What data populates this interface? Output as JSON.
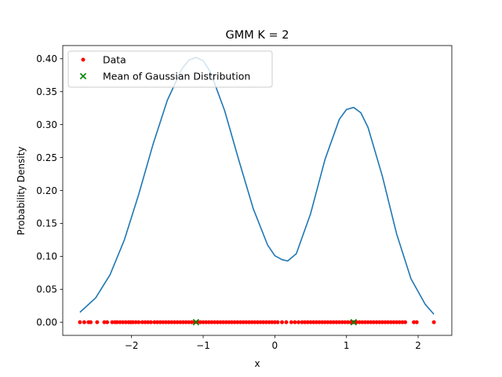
{
  "chart_data": {
    "type": "line",
    "title": "GMM K = 2",
    "xlabel": "x",
    "ylabel": "Probability Density",
    "xlim": [
      -2.96,
      2.47
    ],
    "ylim": [
      -0.02,
      0.42
    ],
    "x_ticks": [
      -2,
      -1,
      0,
      1,
      2
    ],
    "x_tick_labels": [
      "−2",
      "−1",
      "0",
      "1",
      "2"
    ],
    "y_ticks": [
      0.0,
      0.05,
      0.1,
      0.15,
      0.2,
      0.25,
      0.3,
      0.35,
      0.4
    ],
    "y_tick_labels": [
      "0.00",
      "0.05",
      "0.10",
      "0.15",
      "0.20",
      "0.25",
      "0.30",
      "0.35",
      "0.40"
    ],
    "grid": false,
    "legend_position": "upper-left",
    "series": [
      {
        "kind": "line",
        "color": "#1f77b4",
        "x": [
          -2.72,
          -2.5,
          -2.3,
          -2.1,
          -1.9,
          -1.7,
          -1.5,
          -1.3,
          -1.2,
          -1.1,
          -1.0,
          -0.9,
          -0.7,
          -0.5,
          -0.3,
          -0.1,
          0.0,
          0.1,
          0.18,
          0.3,
          0.5,
          0.7,
          0.9,
          1.0,
          1.1,
          1.2,
          1.3,
          1.5,
          1.7,
          1.9,
          2.1,
          2.22
        ],
        "y": [
          0.015,
          0.037,
          0.072,
          0.125,
          0.194,
          0.27,
          0.337,
          0.384,
          0.398,
          0.402,
          0.397,
          0.38,
          0.321,
          0.245,
          0.172,
          0.117,
          0.101,
          0.095,
          0.093,
          0.104,
          0.165,
          0.247,
          0.308,
          0.323,
          0.326,
          0.318,
          0.296,
          0.222,
          0.134,
          0.066,
          0.027,
          0.012
        ]
      },
      {
        "name": "Data",
        "kind": "scatter",
        "color": "#ff0000",
        "x": [
          -2.72,
          -2.66,
          -2.6,
          -2.57,
          -2.48,
          -2.38,
          -2.34,
          -2.27,
          -2.23,
          -2.2,
          -2.16,
          -2.12,
          -2.08,
          -2.04,
          -2.01,
          -1.98,
          -1.94,
          -1.9,
          -1.85,
          -1.81,
          -1.77,
          -1.73,
          -1.68,
          -1.64,
          -1.6,
          -1.56,
          -1.52,
          -1.48,
          -1.44,
          -1.4,
          -1.36,
          -1.32,
          -1.28,
          -1.24,
          -1.2,
          -1.16,
          -1.12,
          -1.08,
          -1.04,
          -1.0,
          -0.96,
          -0.92,
          -0.88,
          -0.84,
          -0.8,
          -0.76,
          -0.72,
          -0.68,
          -0.64,
          -0.6,
          -0.56,
          -0.52,
          -0.48,
          -0.44,
          -0.4,
          -0.36,
          -0.32,
          -0.28,
          -0.24,
          -0.2,
          -0.16,
          -0.12,
          -0.08,
          -0.04,
          0.0,
          0.04,
          0.1,
          0.16,
          0.23,
          0.28,
          0.33,
          0.38,
          0.42,
          0.46,
          0.5,
          0.54,
          0.58,
          0.62,
          0.66,
          0.7,
          0.74,
          0.78,
          0.82,
          0.86,
          0.9,
          0.94,
          0.98,
          1.02,
          1.06,
          1.1,
          1.14,
          1.18,
          1.22,
          1.26,
          1.3,
          1.34,
          1.38,
          1.42,
          1.46,
          1.5,
          1.54,
          1.58,
          1.62,
          1.66,
          1.7,
          1.74,
          1.78,
          1.82,
          1.94,
          1.98,
          2.22
        ],
        "y": [
          0,
          0,
          0,
          0,
          0,
          0,
          0,
          0,
          0,
          0,
          0,
          0,
          0,
          0,
          0,
          0,
          0,
          0,
          0,
          0,
          0,
          0,
          0,
          0,
          0,
          0,
          0,
          0,
          0,
          0,
          0,
          0,
          0,
          0,
          0,
          0,
          0,
          0,
          0,
          0,
          0,
          0,
          0,
          0,
          0,
          0,
          0,
          0,
          0,
          0,
          0,
          0,
          0,
          0,
          0,
          0,
          0,
          0,
          0,
          0,
          0,
          0,
          0,
          0,
          0,
          0,
          0,
          0,
          0,
          0,
          0,
          0,
          0,
          0,
          0,
          0,
          0,
          0,
          0,
          0,
          0,
          0,
          0,
          0,
          0,
          0,
          0,
          0,
          0,
          0,
          0,
          0,
          0,
          0,
          0,
          0,
          0,
          0,
          0,
          0,
          0,
          0,
          0,
          0,
          0,
          0,
          0,
          0,
          0,
          0,
          0
        ]
      },
      {
        "name": "Mean of Gaussian Distribution",
        "kind": "scatter",
        "marker": "x",
        "color": "#008000",
        "x": [
          -1.1,
          1.1
        ],
        "y": [
          0,
          0
        ]
      }
    ]
  }
}
